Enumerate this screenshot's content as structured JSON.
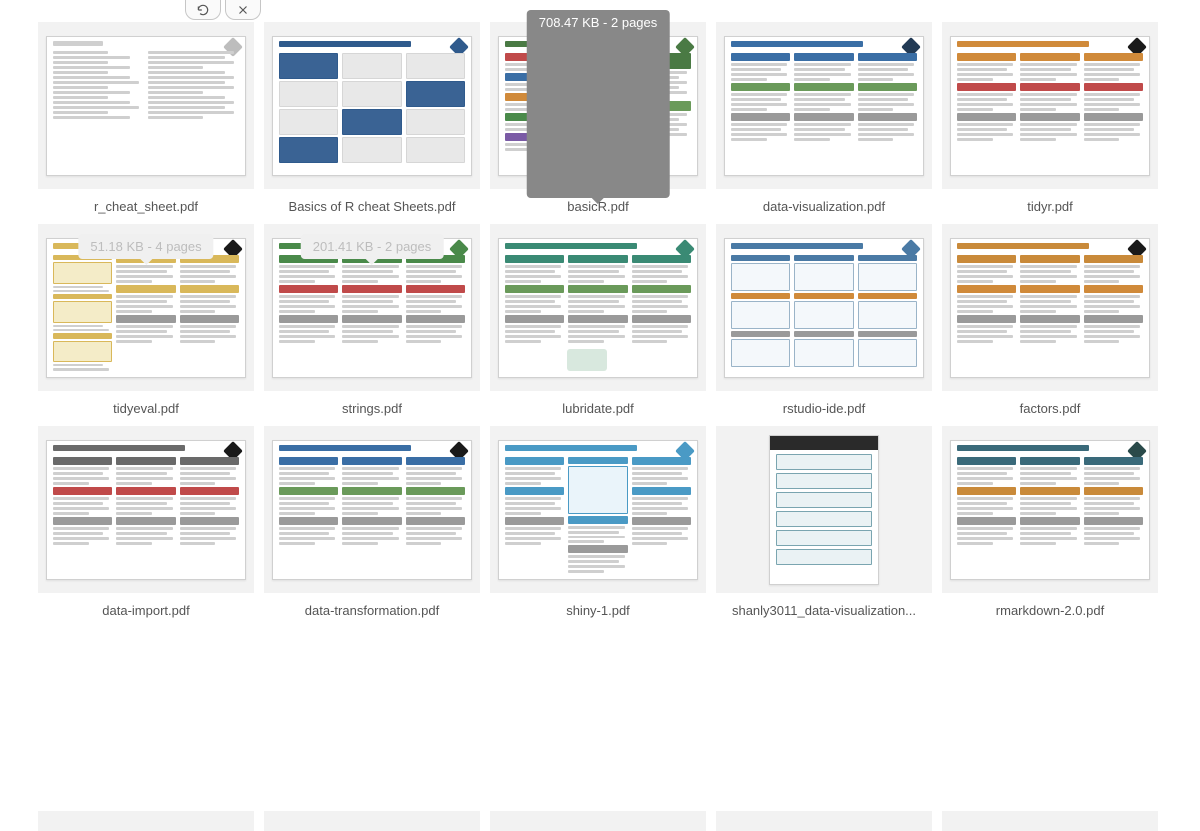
{
  "colors": {
    "bg_gray": "#f2f2f2",
    "tooltip_bg": "#888888",
    "tooltip_text": "#ffffff",
    "tooltip_ghost_bg": "#f0f0f0",
    "tooltip_ghost_text": "#bdbdbd",
    "filename_color": "#555555",
    "page_border": "#d0d0d0"
  },
  "toolbar": {
    "refresh_label": "Refresh",
    "close_label": "Close"
  },
  "tooltips": {
    "basicR": "708.47 KB - 2 pages",
    "tidyeval_ghost": "51.18 KB - 4 pages",
    "strings_ghost": "201.41 KB - 2 pages"
  },
  "files": [
    {
      "name": "r_cheat_sheet.pdf",
      "style": "plain",
      "accent": "#bdbdbd",
      "badge": "#bdbdbd"
    },
    {
      "name": "Basics of R cheat Sheets.pdf",
      "style": "baseR",
      "accent": "#2f5a8c",
      "badge": "#2f5a8c"
    },
    {
      "name": "basicR.pdf",
      "style": "colorful",
      "accent": "#4a7a44",
      "badge": "#4a7a44",
      "tooltip": "basicR"
    },
    {
      "name": "data-visualization.pdf",
      "style": "ggplot",
      "accent": "#3a6ea5",
      "badge": "#223a55"
    },
    {
      "name": "tidyr.pdf",
      "style": "tidyr",
      "accent": "#d08a3a",
      "badge": "#1a1a1a"
    },
    {
      "name": "tidyeval.pdf",
      "style": "tidyeval",
      "accent": "#d9b85a",
      "badge": "#1a1a1a",
      "ghost_tooltip": "tidyeval_ghost"
    },
    {
      "name": "strings.pdf",
      "style": "strings",
      "accent": "#4a8a4a",
      "badge": "#4a8a4a",
      "ghost_tooltip": "strings_ghost"
    },
    {
      "name": "lubridate.pdf",
      "style": "lubridate",
      "accent": "#3a8a74",
      "badge": "#3a8a74"
    },
    {
      "name": "rstudio-ide.pdf",
      "style": "rstudio",
      "accent": "#4a7aa5",
      "badge": "#4a7aa5"
    },
    {
      "name": "factors.pdf",
      "style": "factors",
      "accent": "#c98a3a",
      "badge": "#1a1a1a"
    },
    {
      "name": "data-import.pdf",
      "style": "import",
      "accent": "#6a6a6a",
      "badge": "#1a1a1a"
    },
    {
      "name": "data-transformation.pdf",
      "style": "dplyr",
      "accent": "#3a6ea5",
      "badge": "#1a1a1a"
    },
    {
      "name": "shiny-1.pdf",
      "style": "shiny",
      "accent": "#4a9ac5",
      "badge": "#4a9ac5"
    },
    {
      "name": "shanly3011_data-visualization...",
      "style": "portrait",
      "accent": "#3a7a8a",
      "badge": "#3a7a8a"
    },
    {
      "name": "rmarkdown-2.0.pdf",
      "style": "rmarkdown",
      "accent": "#3a6a7a",
      "badge": "#2a4a4a"
    }
  ]
}
